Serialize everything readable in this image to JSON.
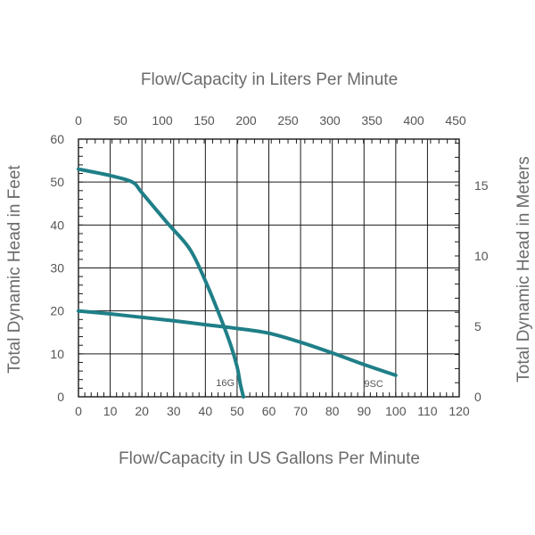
{
  "chart_data": {
    "type": "line",
    "title": "",
    "xlabel": "Flow/Capacity in US Gallons Per Minute",
    "x2label": "Flow/Capacity in Liters Per Minute",
    "ylabel": "Total Dynamic Head in Feet",
    "y2label": "Total Dynamic Head in Meters",
    "xlim": [
      0,
      120
    ],
    "ylim": [
      0,
      60
    ],
    "x2lim": [
      0,
      454.2
    ],
    "y2lim": [
      0,
      18.29
    ],
    "x_ticks": [
      0,
      10,
      20,
      30,
      40,
      50,
      60,
      70,
      80,
      90,
      100,
      110,
      120
    ],
    "y_ticks": [
      0,
      10,
      20,
      30,
      40,
      50,
      60
    ],
    "x2_ticks": [
      0,
      50,
      100,
      150,
      200,
      250,
      300,
      350,
      400,
      450
    ],
    "y2_ticks": [
      0,
      5,
      10,
      15
    ],
    "grid": true,
    "legend": "none",
    "line_color": "#1f7f87",
    "series": [
      {
        "name": "16G",
        "x": [
          0,
          10,
          17,
          20,
          28,
          35,
          40,
          45,
          48,
          50,
          51,
          52
        ],
        "y": [
          53,
          51.5,
          50,
          47.5,
          40.5,
          34.5,
          27,
          18,
          12,
          7,
          3,
          0
        ]
      },
      {
        "name": "9SC",
        "x": [
          0,
          10,
          20,
          30,
          40,
          50,
          60,
          70,
          80,
          90,
          100
        ],
        "y": [
          20,
          19.3,
          18.5,
          17.7,
          16.8,
          15.9,
          14.8,
          12.7,
          10.2,
          7.5,
          5
        ]
      }
    ]
  }
}
